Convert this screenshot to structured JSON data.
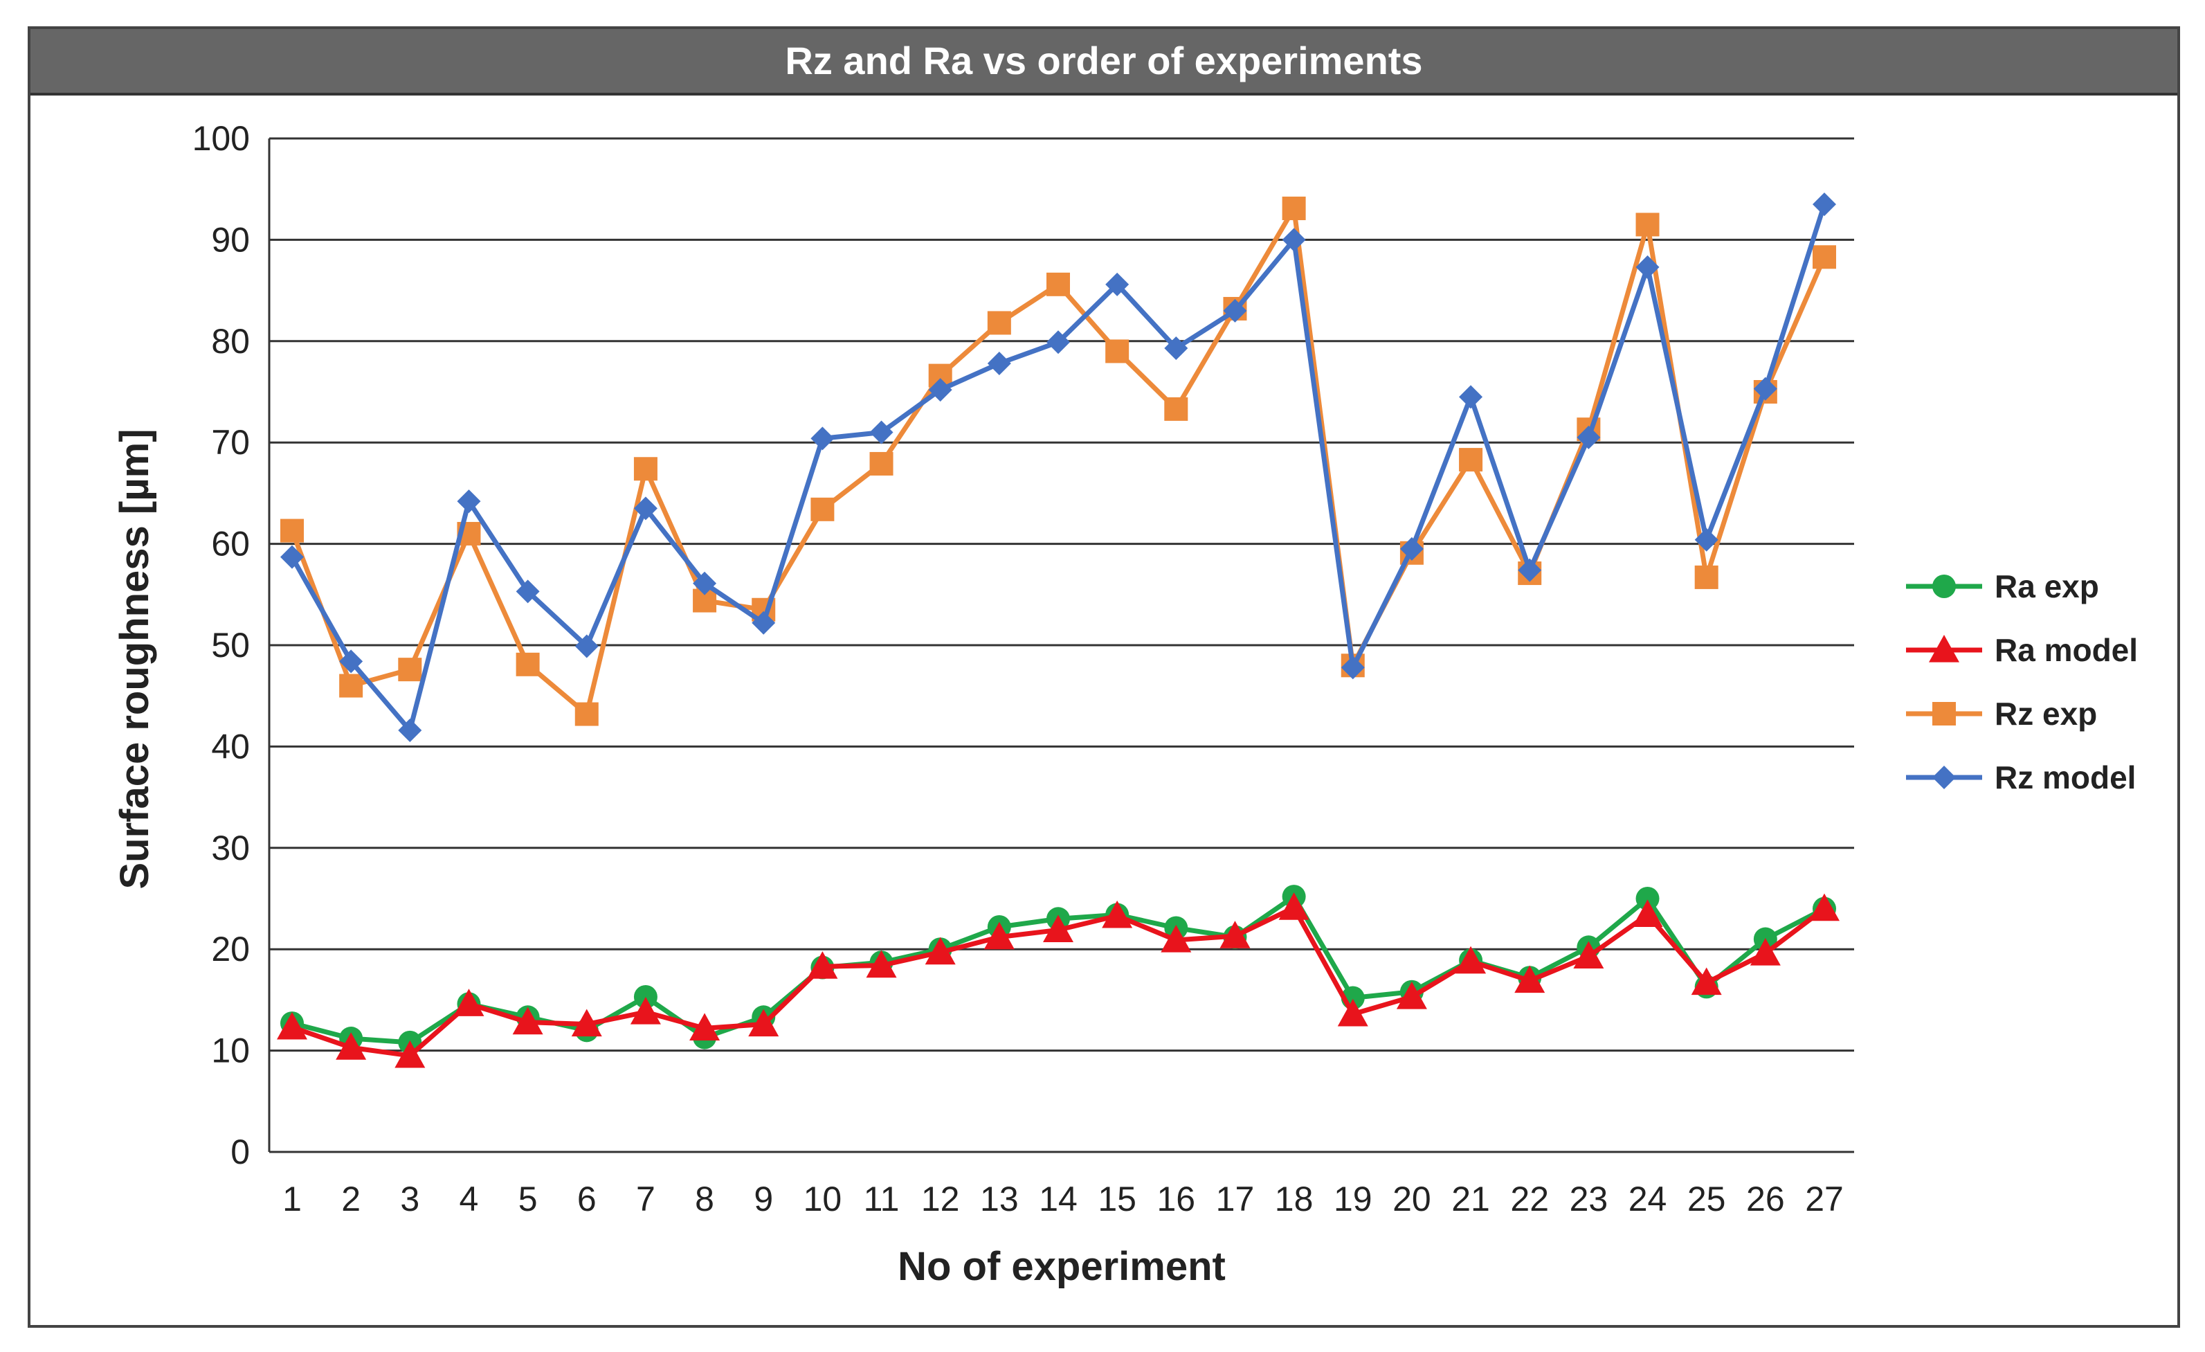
{
  "chart_data": {
    "type": "line",
    "title": "Rz and Ra vs order of experiments",
    "xlabel": "No of experiment",
    "ylabel": "Surface roughness [µm]",
    "ylim": [
      0,
      100
    ],
    "yticks": [
      "0",
      "10",
      "20",
      "30",
      "40",
      "50",
      "60",
      "70",
      "80",
      "90",
      "100"
    ],
    "categories": [
      "1",
      "2",
      "3",
      "4",
      "5",
      "6",
      "7",
      "8",
      "9",
      "10",
      "11",
      "12",
      "13",
      "14",
      "15",
      "16",
      "17",
      "18",
      "19",
      "20",
      "21",
      "22",
      "23",
      "24",
      "25",
      "26",
      "27"
    ],
    "grid": "horizontal",
    "legend_position": "right",
    "series": [
      {
        "name": "Ra exp",
        "color": "#1fa84a",
        "marker": "circle",
        "values": [
          12.7,
          11.2,
          10.8,
          14.6,
          13.3,
          12.0,
          15.3,
          11.3,
          13.3,
          18.2,
          18.7,
          20.0,
          22.2,
          23.0,
          23.4,
          22.1,
          21.2,
          25.2,
          15.2,
          15.8,
          18.9,
          17.2,
          20.2,
          25.0,
          16.3,
          21.0,
          24.0
        ]
      },
      {
        "name": "Ra model",
        "color": "#e8141c",
        "marker": "triangle",
        "values": [
          12.3,
          10.3,
          9.5,
          14.6,
          12.8,
          12.6,
          13.8,
          12.2,
          12.6,
          18.3,
          18.4,
          19.7,
          21.2,
          21.9,
          23.3,
          20.9,
          21.3,
          24.1,
          13.6,
          15.3,
          18.8,
          16.9,
          19.3,
          23.4,
          16.7,
          19.6,
          24.0
        ]
      },
      {
        "name": "Rz exp",
        "color": "#ed8a3a",
        "marker": "square",
        "values": [
          61.3,
          46.0,
          47.6,
          61.0,
          48.1,
          43.2,
          67.4,
          54.4,
          53.5,
          63.4,
          67.9,
          76.6,
          81.8,
          85.6,
          79.0,
          73.3,
          83.2,
          93.1,
          48.0,
          59.1,
          68.3,
          57.1,
          71.3,
          91.5,
          56.7,
          75.0,
          88.3
        ]
      },
      {
        "name": "Rz model",
        "color": "#4472c4",
        "marker": "diamond",
        "values": [
          58.7,
          48.4,
          41.6,
          64.2,
          55.3,
          49.9,
          63.5,
          56.1,
          52.2,
          70.4,
          71.0,
          75.2,
          77.8,
          79.9,
          85.6,
          79.3,
          83.0,
          90.0,
          47.8,
          59.5,
          74.5,
          57.4,
          70.5,
          87.3,
          60.4,
          75.3,
          93.5
        ]
      }
    ]
  }
}
